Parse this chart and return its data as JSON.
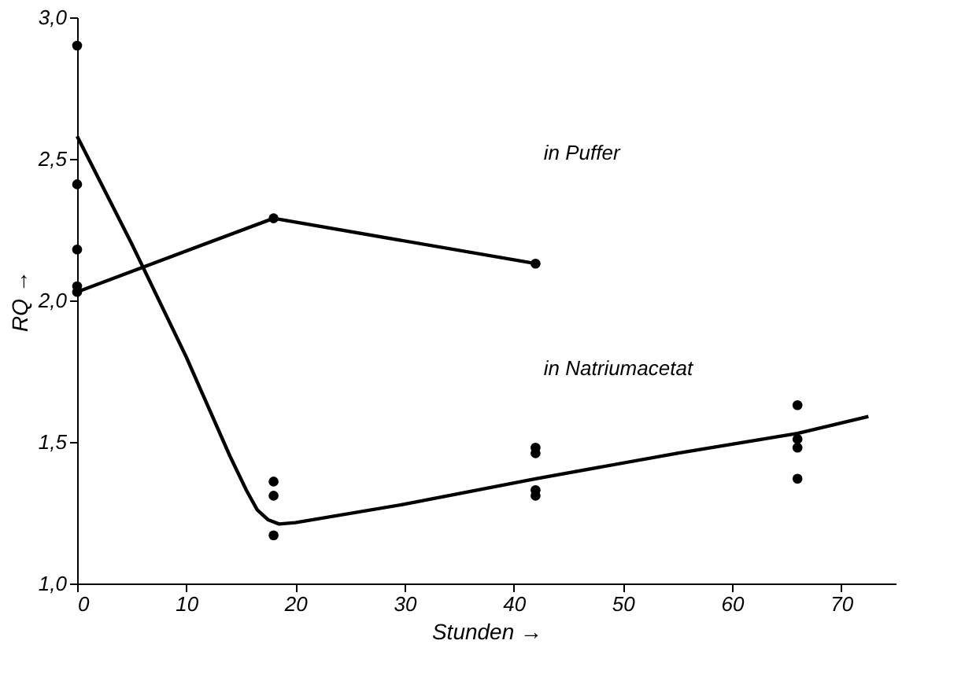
{
  "chart_data": {
    "type": "line",
    "xlabel": "Stunden →",
    "ylabel": "RQ →",
    "xlim": [
      0,
      75
    ],
    "ylim": [
      1.0,
      3.0
    ],
    "xticks": [
      0,
      10,
      20,
      30,
      40,
      50,
      60,
      70
    ],
    "yticks": [
      {
        "value": 1.0,
        "label": "1,0"
      },
      {
        "value": 1.5,
        "label": "1,5"
      },
      {
        "value": 2.0,
        "label": "2,0"
      },
      {
        "value": 2.5,
        "label": "2,5"
      },
      {
        "value": 3.0,
        "label": "3,0"
      }
    ],
    "grid": false,
    "series": [
      {
        "marker": "circle",
        "color": "#000000",
        "x": [
          0,
          18,
          42
        ],
        "values": [
          2.03,
          2.29,
          2.13
        ]
      },
      {
        "marker": "none",
        "color": "#000000",
        "x": [
          0,
          5,
          10,
          14,
          15.5,
          16.5,
          17.5,
          18.5,
          20,
          30,
          42,
          55,
          66,
          72.5
        ],
        "values": [
          2.58,
          2.2,
          1.8,
          1.45,
          1.33,
          1.26,
          1.225,
          1.21,
          1.215,
          1.28,
          1.37,
          1.46,
          1.53,
          1.59
        ]
      },
      {
        "type": "scatter",
        "marker": "circle",
        "color": "#000000",
        "x": [
          0,
          0,
          0,
          0,
          18,
          18,
          18,
          42,
          42,
          42,
          42,
          66,
          66,
          66,
          66
        ],
        "values": [
          2.9,
          2.41,
          2.18,
          2.05,
          1.36,
          1.31,
          1.17,
          1.48,
          1.46,
          1.33,
          1.31,
          1.63,
          1.51,
          1.48,
          1.37
        ]
      }
    ],
    "annotations": [
      "in Puffer",
      "in Natriumacetat"
    ]
  }
}
